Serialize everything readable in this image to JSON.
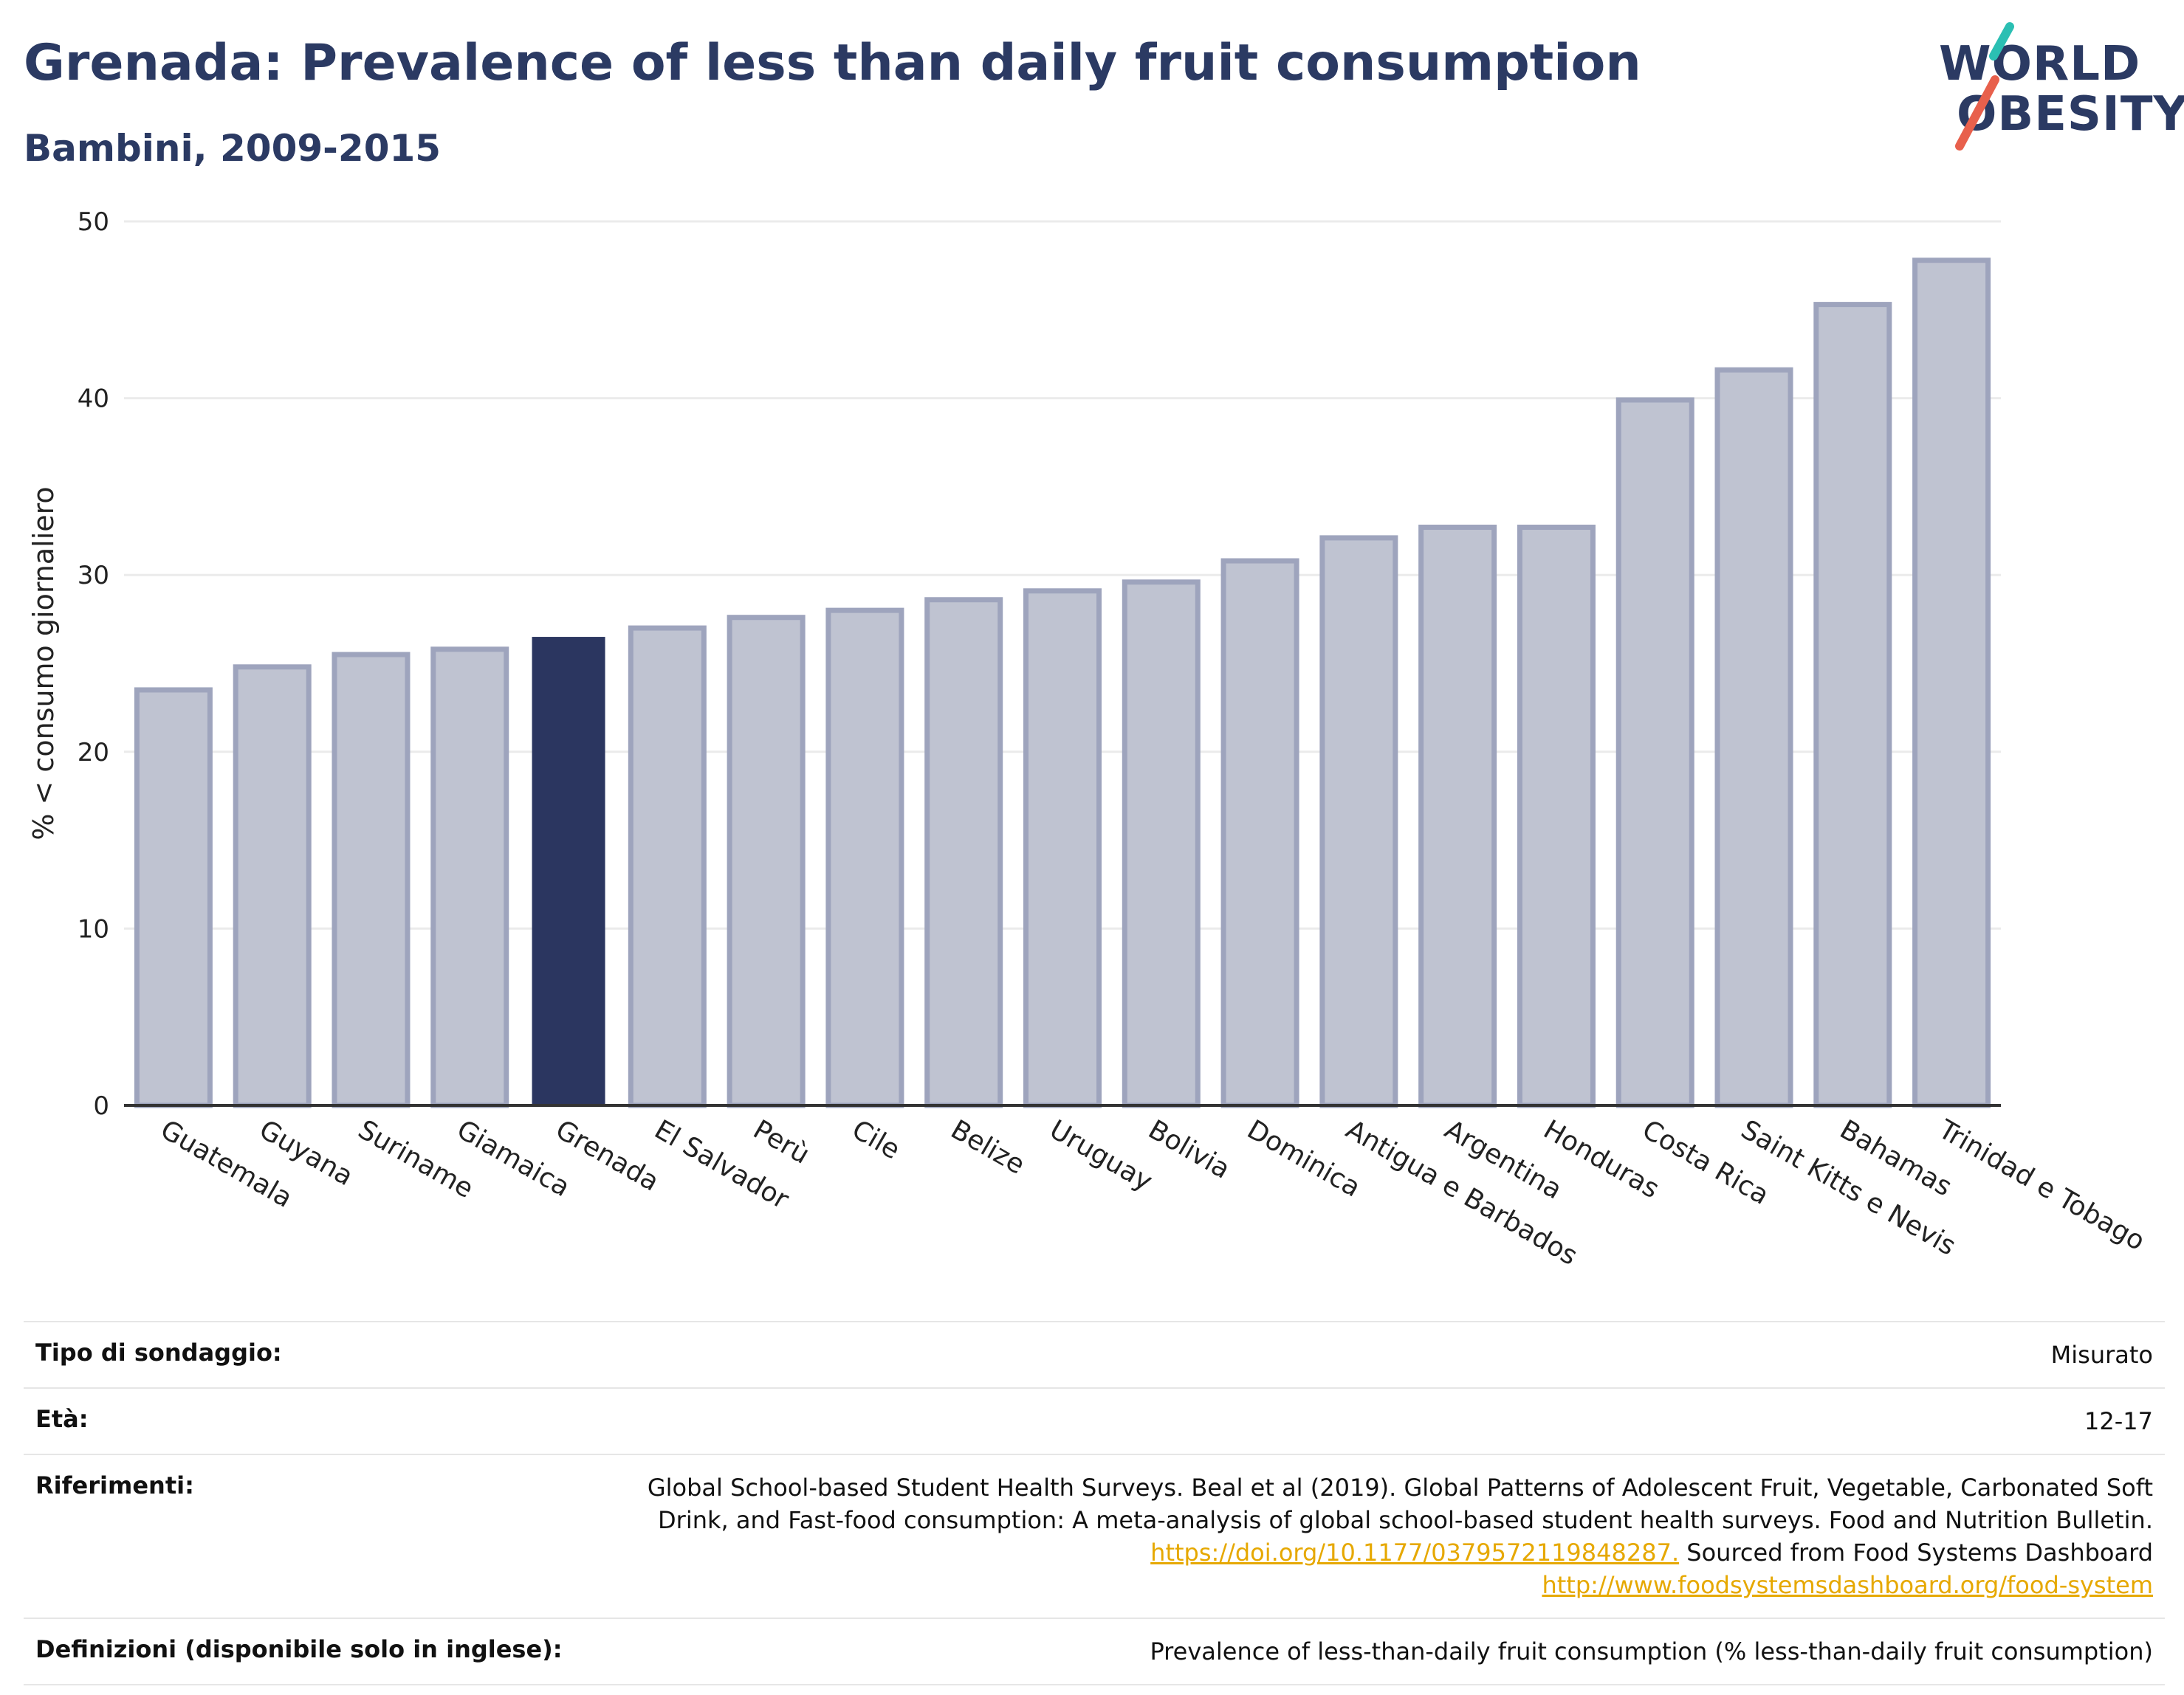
{
  "header": {
    "title": "Grenada: Prevalence of less than daily fruit consumption",
    "subtitle": "Bambini, 2009-2015"
  },
  "logo": {
    "line1": "WORLD",
    "line2": "OBESITY",
    "accent_colors": [
      "#2bbfb3",
      "#e8604c"
    ]
  },
  "colors": {
    "bar": "#bfc3d1",
    "bar_border": "#9ea4bd",
    "highlight": "#2b3660",
    "grid": "#ebebeb",
    "axis": "#333333",
    "text": "#2b3a63"
  },
  "chart_data": {
    "type": "bar",
    "ylabel": "% < consumo giornaliero",
    "xlabel": "",
    "ylim": [
      0,
      50
    ],
    "yticks": [
      0,
      10,
      20,
      30,
      40,
      50
    ],
    "grid": true,
    "highlight": "Grenada",
    "categories": [
      "Guatemala",
      "Guyana",
      "Suriname",
      "Giamaica",
      "Grenada",
      "El Salvador",
      "Perù",
      "Cile",
      "Belize",
      "Uruguay",
      "Bolivia",
      "Dominica",
      "Antigua e Barbados",
      "Argentina",
      "Honduras",
      "Costa Rica",
      "Saint Kitts e Nevis",
      "Bahamas",
      "Trinidad e Tobago"
    ],
    "values": [
      23.5,
      24.8,
      25.5,
      25.8,
      26.5,
      27.0,
      27.6,
      28.0,
      28.6,
      29.1,
      29.6,
      30.8,
      32.1,
      32.7,
      32.7,
      39.9,
      41.6,
      45.3,
      47.8
    ]
  },
  "info": [
    {
      "label": "Tipo di sondaggio:",
      "value": "Misurato"
    },
    {
      "label": "Età:",
      "value": "12-17"
    },
    {
      "label": "Riferimenti:",
      "value": "Global School-based Student Health Surveys. Beal et al (2019). Global Patterns of Adolescent Fruit, Vegetable, Carbonated Soft Drink, and Fast-food consumption: A meta-analysis of global school-based student health surveys. Food and Nutrition Bulletin.",
      "link1": "https://doi.org/10.1177/0379572119848287.",
      "mid": " Sourced from Food Systems Dashboard ",
      "link2": "http://www.foodsystemsdashboard.org/food-system"
    },
    {
      "label": "Definizioni (disponibile solo in inglese):",
      "value": "Prevalence of less-than-daily fruit consumption (% less-than-daily fruit consumption)"
    }
  ]
}
